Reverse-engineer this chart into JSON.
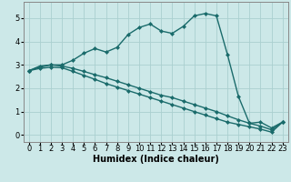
{
  "xlabel": "Humidex (Indice chaleur)",
  "bg_color": "#cce8e8",
  "line_color": "#1a6b6b",
  "grid_color": "#aacfcf",
  "xlim": [
    -0.5,
    23.5
  ],
  "ylim": [
    -0.3,
    5.7
  ],
  "xticks": [
    0,
    1,
    2,
    3,
    4,
    5,
    6,
    7,
    8,
    9,
    10,
    11,
    12,
    13,
    14,
    15,
    16,
    17,
    18,
    19,
    20,
    21,
    22,
    23
  ],
  "yticks": [
    0,
    1,
    2,
    3,
    4,
    5
  ],
  "line1_x": [
    0,
    1,
    2,
    3,
    4,
    5,
    6,
    7,
    8,
    9,
    10,
    11,
    12,
    13,
    14,
    15,
    16,
    17,
    18,
    19,
    20,
    21,
    22,
    23
  ],
  "line1_y": [
    2.75,
    2.95,
    3.0,
    3.0,
    3.2,
    3.5,
    3.7,
    3.55,
    3.75,
    4.3,
    4.6,
    4.75,
    4.45,
    4.35,
    4.65,
    5.1,
    5.2,
    5.1,
    3.45,
    1.65,
    0.5,
    0.55,
    0.3,
    0.55
  ],
  "line2_x": [
    0,
    1,
    2,
    3,
    4,
    5,
    6,
    7,
    8,
    9,
    10,
    11,
    12,
    13,
    14,
    15,
    16,
    17,
    18,
    19,
    20,
    21,
    22,
    23
  ],
  "line2_y": [
    2.75,
    2.9,
    3.0,
    2.95,
    2.85,
    2.72,
    2.58,
    2.45,
    2.3,
    2.15,
    2.0,
    1.85,
    1.7,
    1.6,
    1.45,
    1.3,
    1.15,
    1.0,
    0.82,
    0.65,
    0.5,
    0.38,
    0.22,
    0.55
  ],
  "line3_x": [
    0,
    1,
    2,
    3,
    4,
    5,
    6,
    7,
    8,
    9,
    10,
    11,
    12,
    13,
    14,
    15,
    16,
    17,
    18,
    19,
    20,
    21,
    22,
    23
  ],
  "line3_y": [
    2.75,
    2.85,
    2.9,
    2.88,
    2.72,
    2.55,
    2.38,
    2.2,
    2.05,
    1.9,
    1.75,
    1.6,
    1.45,
    1.3,
    1.15,
    1.0,
    0.85,
    0.7,
    0.55,
    0.45,
    0.35,
    0.25,
    0.12,
    0.55
  ],
  "marker": "D",
  "markersize": 2.0,
  "linewidth": 1.0,
  "xlabel_fontsize": 7,
  "tick_fontsize": 6
}
